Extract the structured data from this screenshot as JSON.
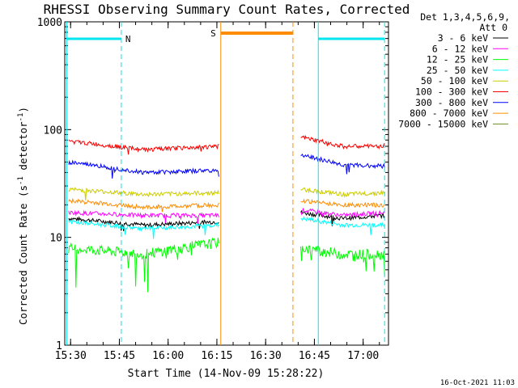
{
  "chart_data": {
    "type": "line",
    "title": "RHESSI Observing Summary Count Rates, Corrected",
    "xlabel": "Start Time (14-Nov-09 15:28:22)",
    "ylabel_main": "Corrected Count Rate (s",
    "ylabel_sup1": "-1",
    "ylabel_mid": " detector",
    "ylabel_sup2": "-1",
    "ylabel_end": ")",
    "y_scale": "log",
    "ylim": [
      1,
      1000
    ],
    "xlim_minutes": [
      15.47,
      17.13
    ],
    "x_tick_labels": [
      "15:30",
      "15:45",
      "16:00",
      "16:15",
      "16:30",
      "16:45",
      "17:00"
    ],
    "x_ticks_hours": [
      15.5,
      15.75,
      16.0,
      16.25,
      16.5,
      16.75,
      17.0
    ],
    "y_tick_labels": [
      "1",
      "10",
      "100",
      "1000"
    ],
    "y_ticks": [
      1,
      10,
      100,
      1000
    ],
    "legend_title_1": "Det 1,3,4,5,6,9,",
    "legend_title_2": "Att 0",
    "legend_position": "top-right outside",
    "timestamp": "16-Oct-2021 11:03",
    "markers": {
      "night_label": "N",
      "saa_label": "S",
      "night_color": "#00e5ee",
      "saa_color": "#ff8c00",
      "night_periods": [
        [
          15.48,
          15.76
        ],
        [
          16.77,
          17.11
        ]
      ],
      "saa_period": [
        16.27,
        16.64
      ],
      "gap": [
        16.27,
        16.67
      ]
    },
    "series": [
      {
        "name": "3 - 6 keV",
        "color": "#000000",
        "seg1": [
          15,
          13,
          14
        ],
        "seg2": [
          17,
          15,
          16
        ]
      },
      {
        "name": "6 - 12 keV",
        "color": "#ff00ff",
        "seg1": [
          17,
          16,
          16
        ],
        "seg2": [
          18,
          16,
          17
        ]
      },
      {
        "name": "12 - 25 keV",
        "color": "#00ff00",
        "seg1": [
          8,
          7,
          9
        ],
        "seg2": [
          8,
          7,
          7
        ]
      },
      {
        "name": "25 - 50 keV",
        "color": "#00ffff",
        "seg1": [
          14,
          12,
          13
        ],
        "seg2": [
          15,
          13,
          13
        ]
      },
      {
        "name": "50 - 100 keV",
        "color": "#cccc00",
        "seg1": [
          28,
          25,
          26
        ],
        "seg2": [
          28,
          25,
          26
        ]
      },
      {
        "name": "100 - 300 keV",
        "color": "#ff0000",
        "seg1": [
          78,
          65,
          70
        ],
        "seg2": [
          85,
          70,
          70
        ]
      },
      {
        "name": "300 - 800 keV",
        "color": "#0000ff",
        "seg1": [
          50,
          40,
          42
        ],
        "seg2": [
          58,
          47,
          46
        ]
      },
      {
        "name": "800 - 7000 keV",
        "color": "#ff8c00",
        "seg1": [
          22,
          19,
          20
        ],
        "seg2": [
          22,
          20,
          20
        ]
      },
      {
        "name": "7000 - 15000 keV",
        "color": "#6b8e23",
        "seg1": [],
        "seg2": []
      }
    ]
  }
}
